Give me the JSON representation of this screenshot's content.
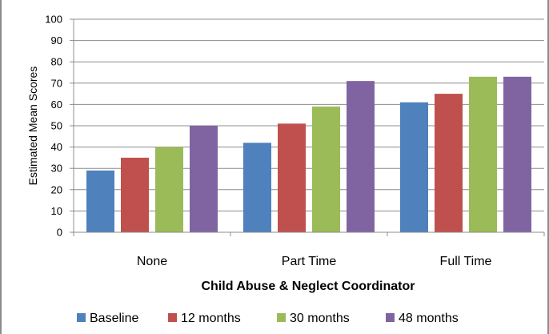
{
  "chart_data": {
    "type": "bar",
    "categories": [
      "None",
      "Part Time",
      "Full Time"
    ],
    "series": [
      {
        "name": "Baseline",
        "color": "#4f81bd",
        "values": [
          29,
          42,
          61
        ]
      },
      {
        "name": "12 months",
        "color": "#c0504d",
        "values": [
          35,
          51,
          65
        ]
      },
      {
        "name": "30 months",
        "color": "#9bbb59",
        "values": [
          40,
          59,
          73
        ]
      },
      {
        "name": "48 months",
        "color": "#8064a2",
        "values": [
          50,
          71,
          73
        ]
      }
    ],
    "title": "",
    "xlabel": "Child Abuse & Neglect Coordinator",
    "ylabel": "Estimated Mean Scores",
    "ylim": [
      0,
      100
    ],
    "yticks": [
      "0",
      "10",
      "20",
      "30",
      "40",
      "50",
      "60",
      "70",
      "80",
      "90",
      "100"
    ],
    "grid": true,
    "legend_position": "bottom"
  }
}
